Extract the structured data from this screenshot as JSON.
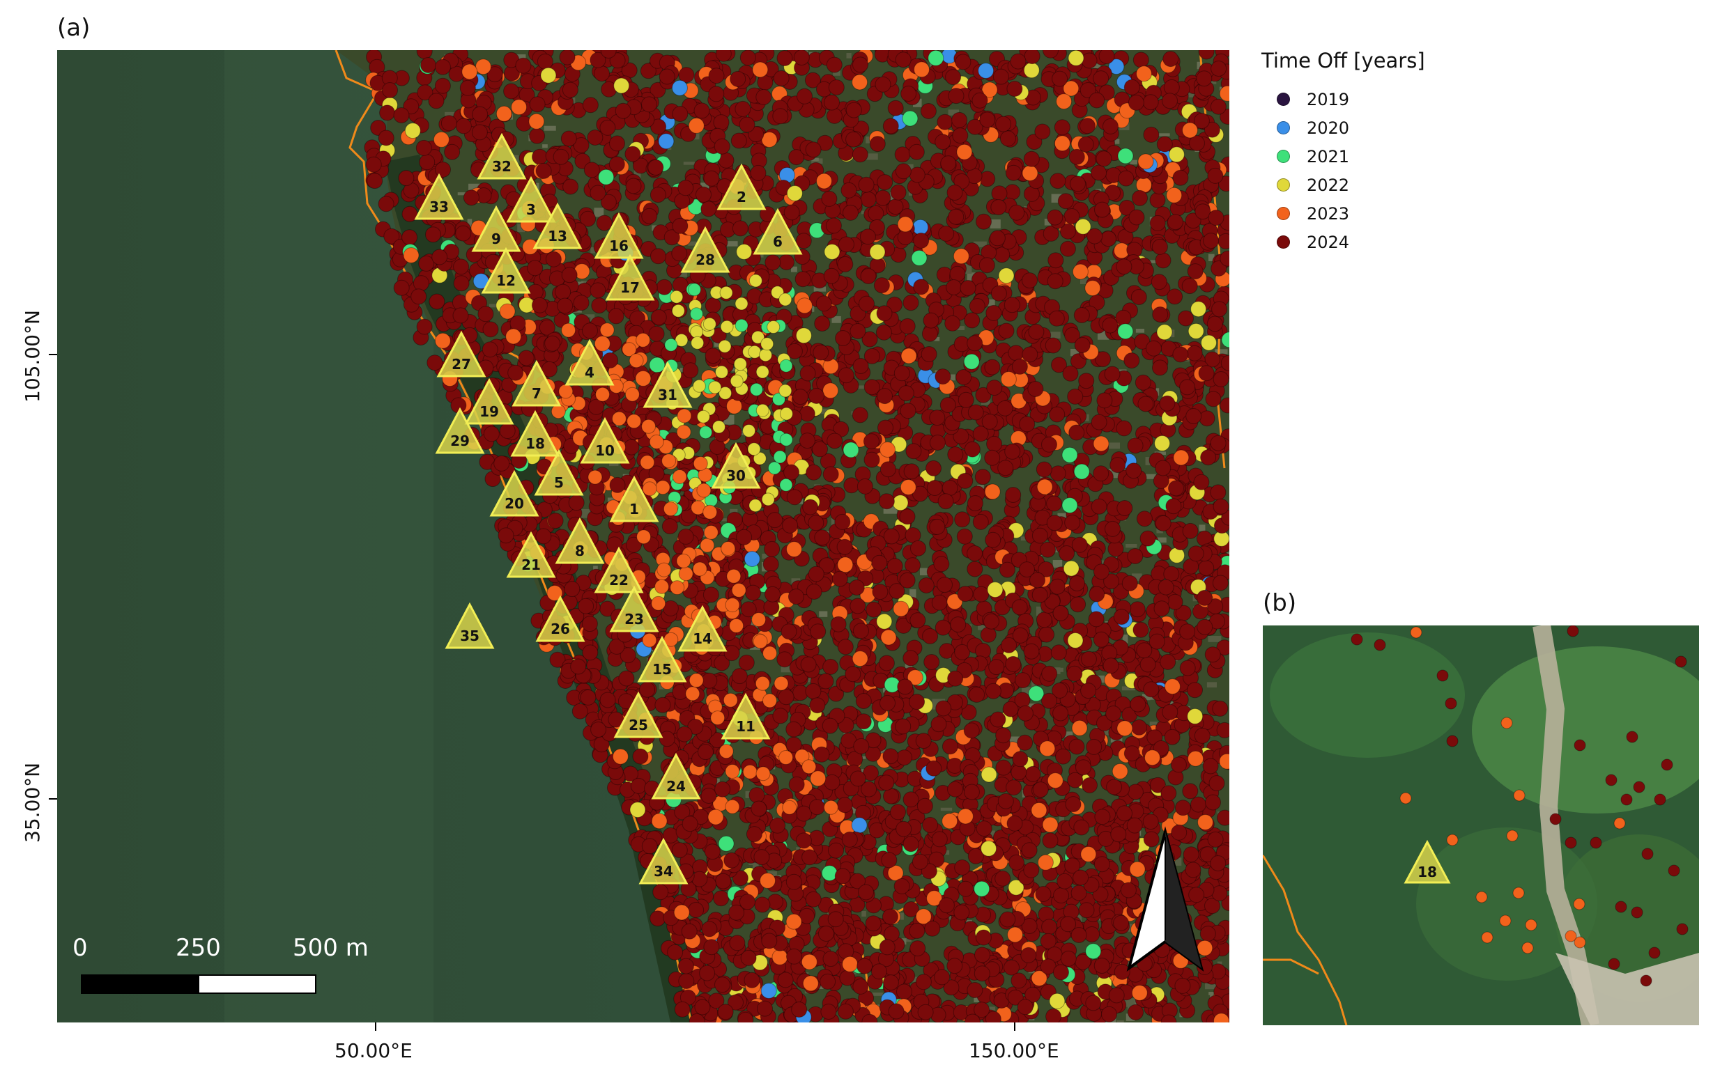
{
  "panel_a": {
    "label": "(a)"
  },
  "panel_b": {
    "label": "(b)"
  },
  "axes": {
    "x_ticks": [
      "50.00°E",
      "150.00°E"
    ],
    "y_ticks": [
      "105.00°N",
      "35.00°N"
    ]
  },
  "legend": {
    "title": "Time Off [years]",
    "items": [
      {
        "label": "2019",
        "color": "#2a1440"
      },
      {
        "label": "2020",
        "color": "#3a8fe8"
      },
      {
        "label": "2021",
        "color": "#3ee07a"
      },
      {
        "label": "2022",
        "color": "#e0d83a"
      },
      {
        "label": "2023",
        "color": "#f2621c"
      },
      {
        "label": "2024",
        "color": "#7a0a0a"
      }
    ]
  },
  "scale_bar": {
    "labels": [
      "0",
      "250",
      "500 m"
    ]
  },
  "north_arrow": {
    "icon": "north-arrow-icon"
  },
  "stations": [
    "1",
    "2",
    "3",
    "4",
    "5",
    "6",
    "7",
    "8",
    "9",
    "10",
    "11",
    "12",
    "13",
    "14",
    "15",
    "16",
    "17",
    "18",
    "19",
    "20",
    "21",
    "22",
    "23",
    "24",
    "25",
    "26",
    "27",
    "28",
    "29",
    "30",
    "31",
    "32",
    "33",
    "34",
    "35"
  ],
  "inset_station": "18"
}
